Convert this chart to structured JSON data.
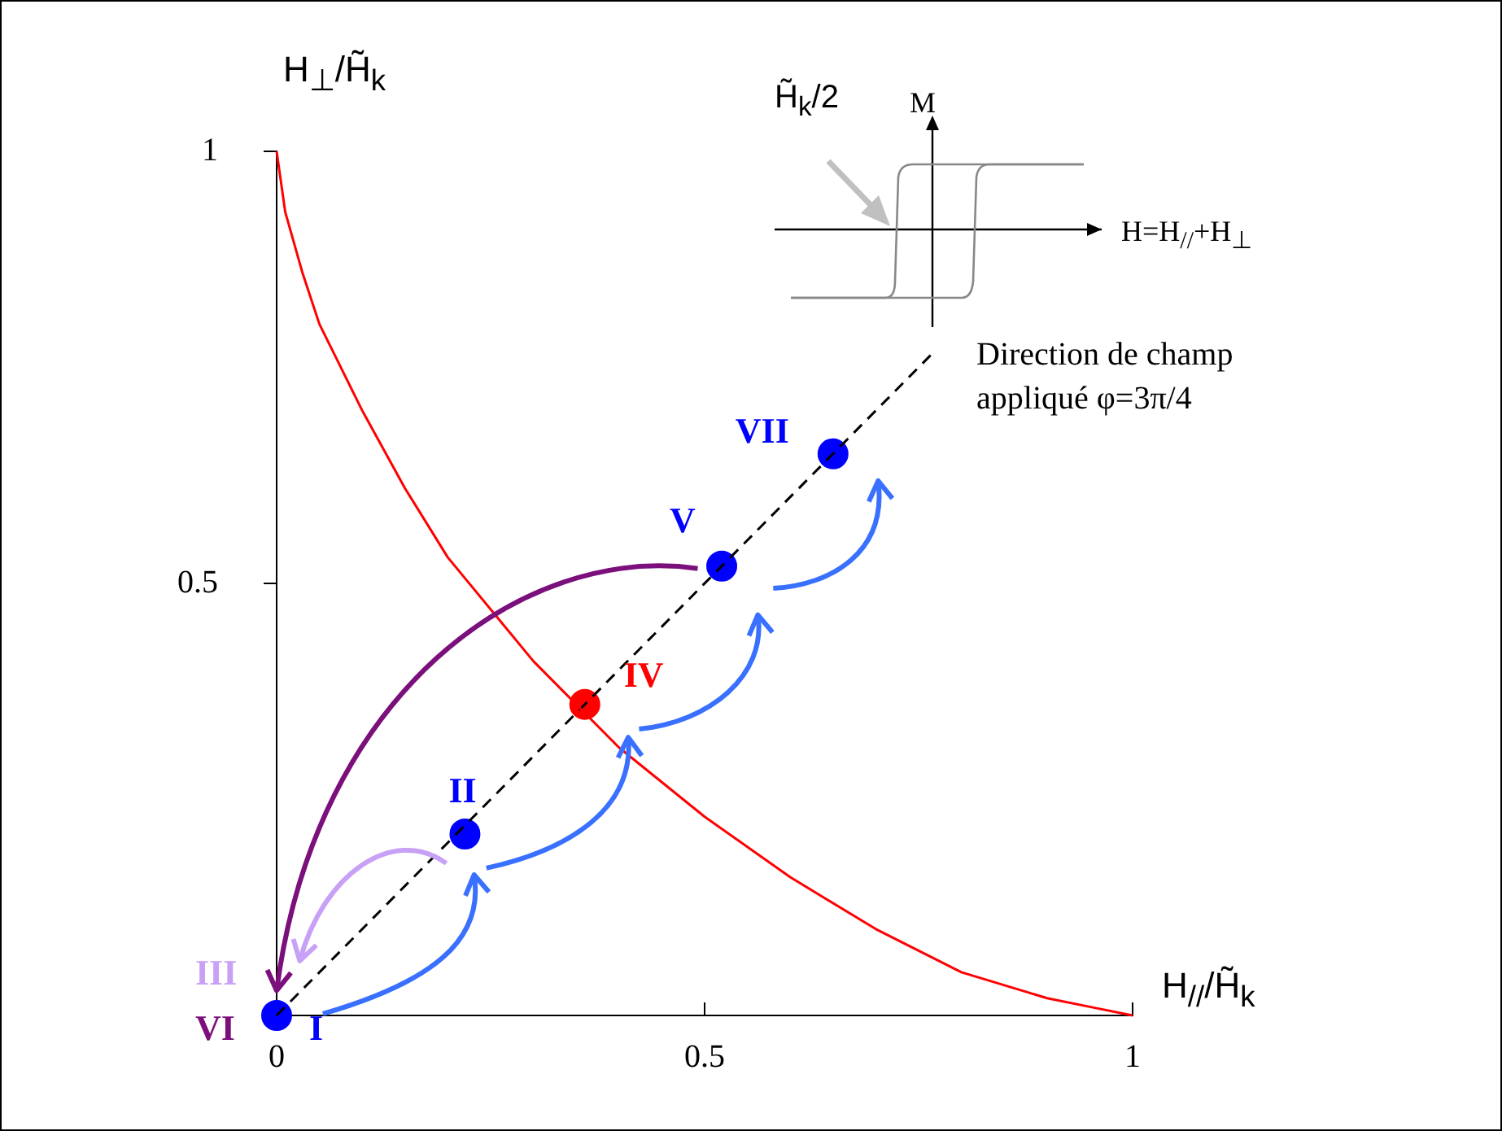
{
  "chart_data": [
    {
      "type": "scatter",
      "xlabel": "H$_{//}$/H̃$_{k}$",
      "ylabel": "H$_{⊥}$/H̃$_{k}$",
      "xlim": [
        0,
        1
      ],
      "ylim": [
        0,
        1
      ],
      "xticks": [
        0,
        0.5,
        1
      ],
      "yticks": [
        0.5,
        1
      ],
      "grid": false,
      "legend": false,
      "series": [
        {
          "type": "line",
          "color": "#ff0000",
          "x": [
            0,
            0.01,
            0.03,
            0.05,
            0.1,
            0.15,
            0.2,
            0.3,
            0.4,
            0.5,
            0.6,
            0.7,
            0.8,
            0.9,
            0.95,
            1
          ],
          "values": [
            1,
            0.93,
            0.86,
            0.8,
            0.7,
            0.61,
            0.53,
            0.41,
            0.31,
            0.23,
            0.16,
            0.1,
            0.05,
            0.02,
            0.01,
            0
          ]
        },
        {
          "type": "line",
          "color": "#000000",
          "line_style": "dashed",
          "x": [
            0,
            0.77
          ],
          "values": [
            0,
            0.77
          ]
        },
        {
          "type": "scatter",
          "marker": "circle",
          "x": [
            0,
            0.22,
            0.36,
            0.52,
            0.65
          ],
          "values": [
            0,
            0.21,
            0.36,
            0.52,
            0.65
          ],
          "colors": [
            "#0000ff",
            "#0000ff",
            "#ff0000",
            "#0000ff",
            "#0000ff"
          ]
        }
      ],
      "annotations": [
        {
          "text": "I",
          "x": 0,
          "y": 0
        },
        {
          "text": "II",
          "x": 0.22,
          "y": 0.21
        },
        {
          "text": "III",
          "x": 0,
          "y": 0
        },
        {
          "text": "IV",
          "x": 0.36,
          "y": 0.36
        },
        {
          "text": "V",
          "x": 0.52,
          "y": 0.52
        },
        {
          "text": "VI",
          "x": 0,
          "y": 0
        },
        {
          "text": "VII",
          "x": 0.65,
          "y": 0.65
        },
        {
          "text": "Direction de champ appliqué φ=3π/4",
          "x": 0.77,
          "y": 0.77
        }
      ]
    },
    {
      "type": "other",
      "annotations": [
        "H̃$_{k}$/2",
        "M",
        "H=H$_{//}$+H$_{⊥}$"
      ]
    }
  ]
}
